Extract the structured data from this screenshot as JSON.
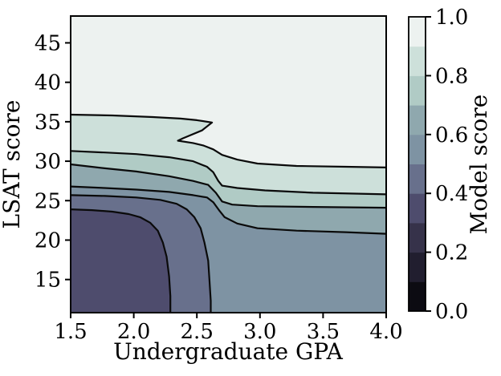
{
  "chart_data": {
    "type": "contour",
    "title": "",
    "xlabel": "Undergraduate GPA",
    "ylabel": "LSAT score",
    "xlim": [
      1.5,
      4.0
    ],
    "ylim": [
      10.8,
      48.4
    ],
    "xticks": [
      1.5,
      2.0,
      2.5,
      3.0,
      3.5,
      4.0
    ],
    "yticks": [
      15,
      20,
      25,
      30,
      35,
      40,
      45
    ],
    "grid": false,
    "line_color": "#0a0a0a",
    "colorbar": {
      "label": "Model score",
      "ticks": [
        0.0,
        0.2,
        0.4,
        0.6,
        0.8,
        1.0
      ],
      "levels": [
        0.0,
        0.1,
        0.2,
        0.3,
        0.4,
        0.5,
        0.6,
        0.7,
        0.8,
        0.9,
        1.0
      ],
      "band_colors_bottom_to_top": [
        "#0c0b12",
        "#211e2f",
        "#36324a",
        "#4e4c6d",
        "#68708c",
        "#7e93a3",
        "#8fa8ae",
        "#b0cbc5",
        "#cde0da",
        "#edf2f0"
      ]
    },
    "contours": [
      {
        "level": 0.9,
        "exit": "right",
        "points": [
          [
            1.5,
            35.9
          ],
          [
            1.83,
            35.8
          ],
          [
            2.15,
            35.6
          ],
          [
            2.37,
            35.4
          ],
          [
            2.5,
            35.2
          ],
          [
            2.62,
            34.9
          ],
          [
            2.54,
            33.9
          ],
          [
            2.39,
            32.9
          ],
          [
            2.35,
            32.6
          ],
          [
            2.47,
            32.3
          ],
          [
            2.55,
            32.0
          ],
          [
            2.63,
            31.5
          ],
          [
            2.7,
            30.8
          ],
          [
            2.82,
            30.2
          ],
          [
            2.98,
            29.7
          ],
          [
            3.29,
            29.4
          ],
          [
            3.68,
            29.3
          ],
          [
            4.0,
            29.2
          ]
        ]
      },
      {
        "level": 0.8,
        "exit": "right",
        "points": [
          [
            1.5,
            31.3
          ],
          [
            1.77,
            31.1
          ],
          [
            2.02,
            30.9
          ],
          [
            2.28,
            30.5
          ],
          [
            2.47,
            30.0
          ],
          [
            2.58,
            29.3
          ],
          [
            2.63,
            28.6
          ],
          [
            2.67,
            27.5
          ],
          [
            2.7,
            26.9
          ],
          [
            2.82,
            26.6
          ],
          [
            3.04,
            26.3
          ],
          [
            3.42,
            26.0
          ],
          [
            4.0,
            25.8
          ]
        ]
      },
      {
        "level": 0.7,
        "exit": "right",
        "points": [
          [
            1.5,
            29.6
          ],
          [
            1.77,
            29.1
          ],
          [
            2.02,
            28.7
          ],
          [
            2.28,
            28.1
          ],
          [
            2.47,
            27.5
          ],
          [
            2.59,
            27.0
          ],
          [
            2.65,
            26.0
          ],
          [
            2.7,
            24.9
          ],
          [
            2.78,
            24.5
          ],
          [
            2.98,
            24.3
          ],
          [
            3.42,
            24.2
          ],
          [
            4.0,
            24.1
          ]
        ]
      },
      {
        "level": 0.6,
        "exit": "right",
        "points": [
          [
            1.5,
            26.8
          ],
          [
            1.77,
            26.6
          ],
          [
            2.02,
            26.4
          ],
          [
            2.28,
            26.1
          ],
          [
            2.47,
            25.7
          ],
          [
            2.58,
            25.4
          ],
          [
            2.63,
            24.8
          ],
          [
            2.68,
            23.7
          ],
          [
            2.72,
            22.9
          ],
          [
            2.82,
            22.1
          ],
          [
            2.98,
            21.5
          ],
          [
            3.29,
            21.2
          ],
          [
            3.68,
            21.0
          ],
          [
            4.0,
            20.8
          ]
        ]
      },
      {
        "level": 0.5,
        "exit": "bottom",
        "points": [
          [
            1.5,
            25.7
          ],
          [
            1.77,
            25.6
          ],
          [
            2.02,
            25.4
          ],
          [
            2.21,
            25.1
          ],
          [
            2.34,
            24.6
          ],
          [
            2.42,
            23.9
          ],
          [
            2.48,
            22.9
          ],
          [
            2.53,
            21.5
          ],
          [
            2.56,
            19.7
          ],
          [
            2.59,
            17.4
          ],
          [
            2.6,
            14.9
          ],
          [
            2.61,
            12.3
          ],
          [
            2.61,
            10.8
          ]
        ]
      },
      {
        "level": 0.4,
        "exit": "bottom",
        "points": [
          [
            1.5,
            23.9
          ],
          [
            1.67,
            23.8
          ],
          [
            1.83,
            23.6
          ],
          [
            1.96,
            23.3
          ],
          [
            2.05,
            22.9
          ],
          [
            2.13,
            22.2
          ],
          [
            2.19,
            21.2
          ],
          [
            2.23,
            19.7
          ],
          [
            2.26,
            17.9
          ],
          [
            2.28,
            15.4
          ],
          [
            2.29,
            12.9
          ],
          [
            2.29,
            10.8
          ]
        ]
      }
    ]
  }
}
